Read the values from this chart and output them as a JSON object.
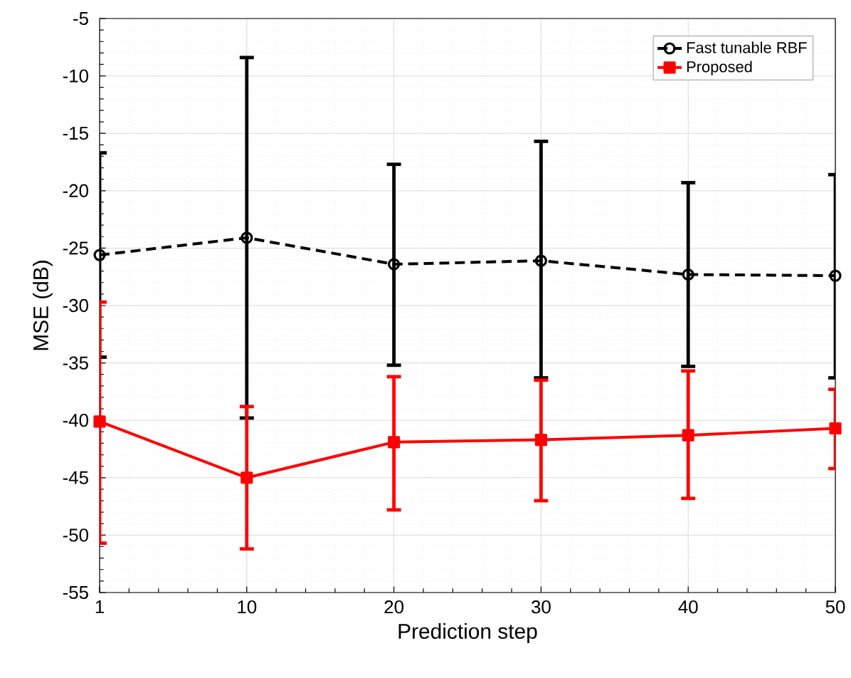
{
  "chart_data": {
    "type": "line",
    "xlabel": "Prediction step",
    "ylabel": "MSE (dB)",
    "categories": [
      "1",
      "10",
      "20",
      "30",
      "40",
      "50"
    ],
    "series": [
      {
        "name": "Fast tunable RBF",
        "color": "#000000",
        "marker": "circle",
        "line_style": "dashed",
        "values": [
          -25.6,
          -24.1,
          -26.4,
          -26.1,
          -27.3,
          -27.4
        ],
        "errors": [
          [
            -34.5,
            -16.7
          ],
          [
            -39.8,
            -8.4
          ],
          [
            -35.2,
            -17.7
          ],
          [
            -36.3,
            -15.7
          ],
          [
            -35.3,
            -19.3
          ],
          [
            -36.3,
            -18.6
          ]
        ]
      },
      {
        "name": "Proposed",
        "color": "#ff0000",
        "marker": "square",
        "line_style": "solid",
        "values": [
          -40.1,
          -45.0,
          -41.9,
          -41.7,
          -41.3,
          -40.7
        ],
        "errors": [
          [
            -50.7,
            -29.7
          ],
          [
            -51.2,
            -38.8
          ],
          [
            -47.8,
            -36.2
          ],
          [
            -47.0,
            -36.5
          ],
          [
            -46.8,
            -35.7
          ],
          [
            -44.2,
            -37.3
          ]
        ]
      }
    ],
    "ylim": [
      -55,
      -5
    ],
    "yticks": [
      -55,
      -50,
      -45,
      -40,
      -35,
      -30,
      -25,
      -20,
      -15,
      -10,
      -5
    ],
    "grid": true,
    "legend": "top right"
  }
}
